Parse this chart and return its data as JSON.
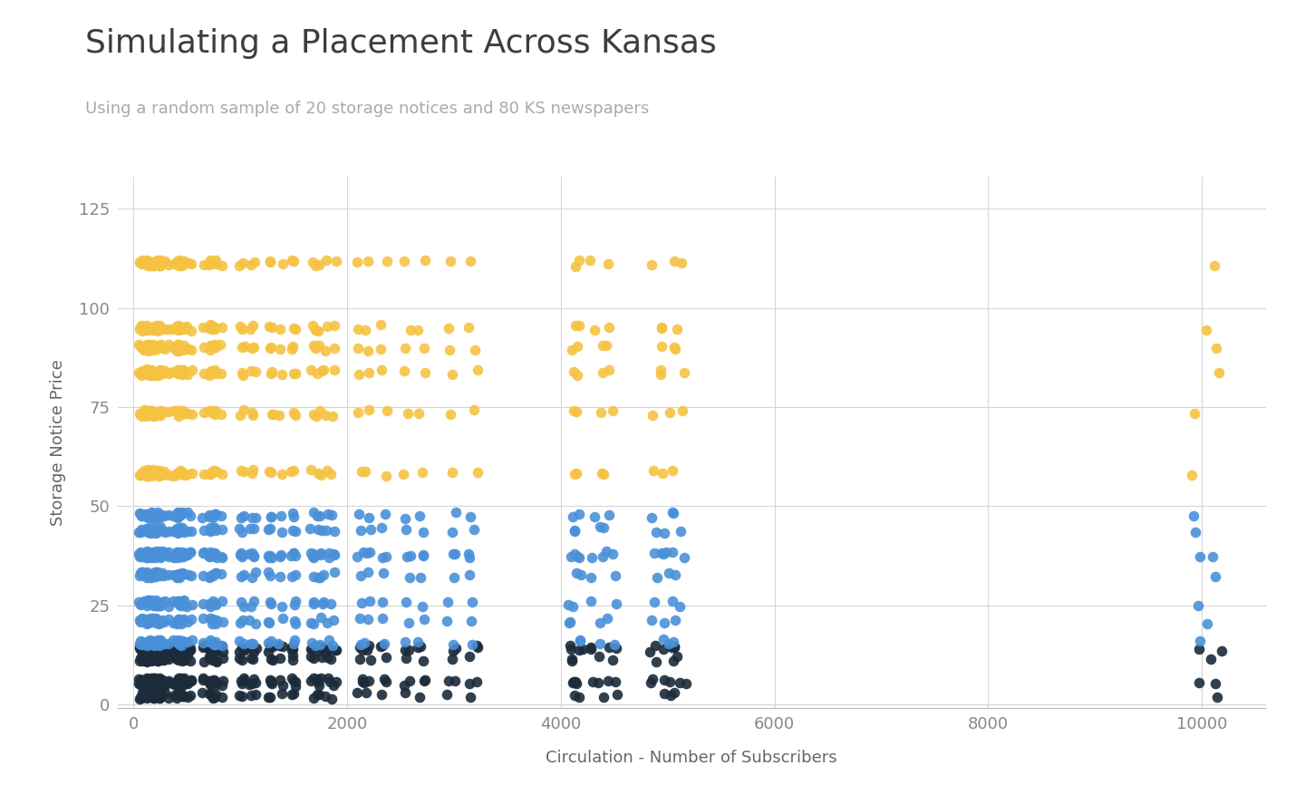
{
  "title": "Simulating a Placement Across Kansas",
  "subtitle": "Using a random sample of 20 storage notices and 80 KS newspapers",
  "xlabel": "Circulation - Number of Subscribers",
  "ylabel": "Storage Notice Price",
  "title_fontsize": 26,
  "subtitle_fontsize": 13,
  "label_fontsize": 13,
  "tick_fontsize": 13,
  "xlim": [
    -150,
    10600
  ],
  "ylim": [
    -1,
    133
  ],
  "xticks": [
    0,
    2000,
    4000,
    6000,
    8000,
    10000
  ],
  "yticks": [
    0,
    25,
    50,
    75,
    100,
    125
  ],
  "background_color": "#ffffff",
  "grid_color": "#d5d5d5",
  "color_blue": "#4A90D9",
  "color_gold": "#F5C242",
  "color_dark": "#1C2B3A",
  "marker_size": 70,
  "alpha": 0.9,
  "seed": 12,
  "title_color": "#3d3d3d",
  "subtitle_color": "#aaaaaa",
  "axis_label_color": "#666666",
  "tick_color": "#888888"
}
